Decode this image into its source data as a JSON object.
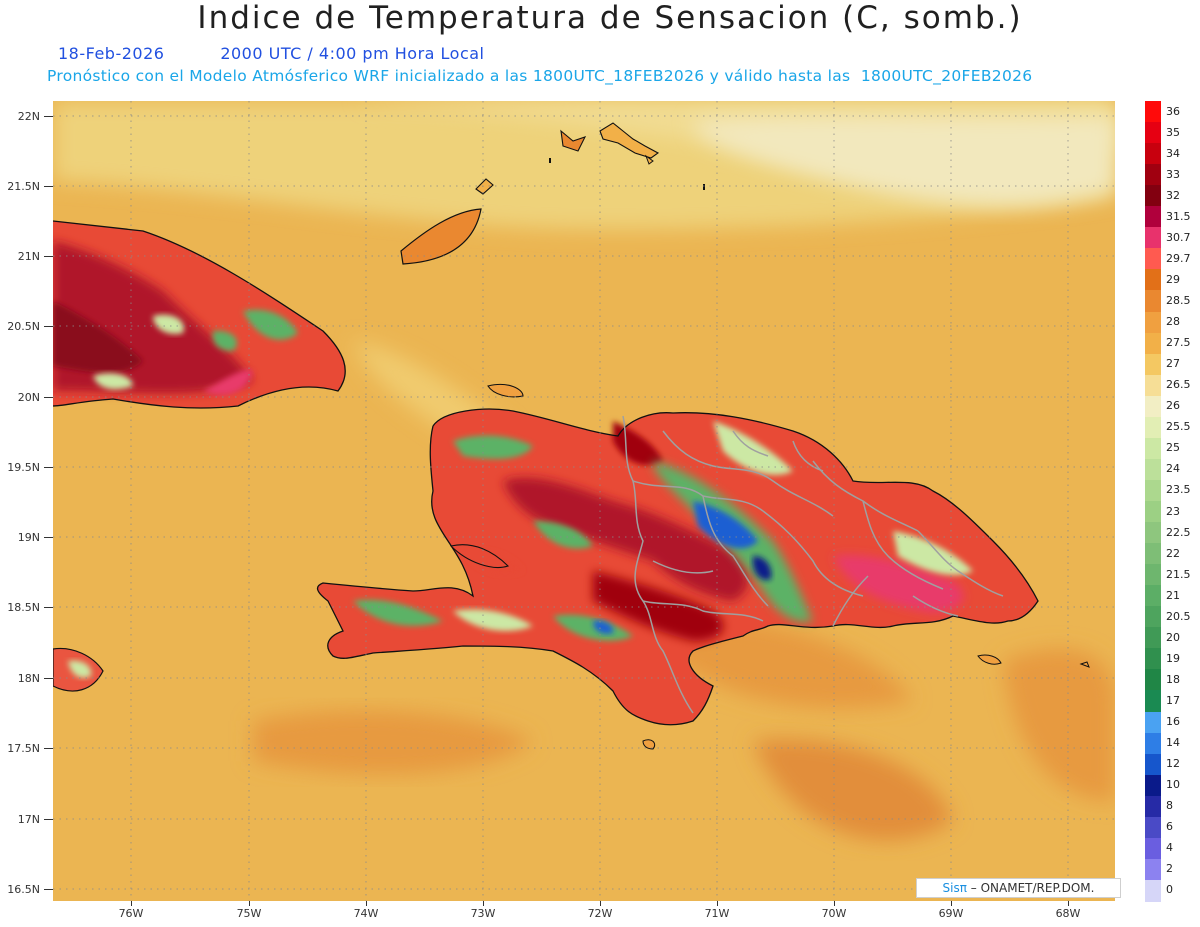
{
  "header": {
    "title": "Indice de Temperatura de Sensacion (C, somb.)",
    "date": "18-Feb-2026",
    "time": "2000 UTC / 4:00 pm Hora Local",
    "forecast_line": "Pronóstico con el Modelo Atmósferico WRF inicializado a las 1800UTC_18FEB2026 y válido hasta las  1800UTC_20FEB2026"
  },
  "map": {
    "lat_labels": [
      "22N",
      "21.5N",
      "21N",
      "20.5N",
      "20N",
      "19.5N",
      "19N",
      "18.5N",
      "18N",
      "17.5N",
      "17N",
      "16.5N"
    ],
    "lon_labels": [
      "76W",
      "75W",
      "74W",
      "73W",
      "72W",
      "71W",
      "70W",
      "69W",
      "68W"
    ],
    "colors": {
      "sea_base": "#ebb552",
      "land_hot": "#b0132b",
      "land_green": "#5cb266",
      "land_cold": "#1c5fd2",
      "coast": "#111111",
      "borders": "#a0a0a0"
    }
  },
  "colorbar": {
    "levels": [
      "36",
      "35",
      "34",
      "33",
      "32",
      "31.5",
      "30.7",
      "29.7",
      "29",
      "28.5",
      "28",
      "27.5",
      "27",
      "26.5",
      "26",
      "25.5",
      "25",
      "24",
      "23.5",
      "23",
      "22.5",
      "22",
      "21.5",
      "21",
      "20.5",
      "20",
      "19",
      "18",
      "17",
      "16",
      "14",
      "12",
      "10",
      "8",
      "6",
      "4",
      "2",
      "0"
    ],
    "colors": [
      "#ff0a0a",
      "#e60012",
      "#c8000e",
      "#a00010",
      "#820010",
      "#b0003c",
      "#e8326c",
      "#ff5a50",
      "#e27018",
      "#ea8830",
      "#f0a040",
      "#f2b048",
      "#f4c862",
      "#f6de96",
      "#f2eec4",
      "#e2eeb4",
      "#cce8a4",
      "#bce09a",
      "#acd88e",
      "#9cd084",
      "#8ec67e",
      "#7ebe76",
      "#6eb66e",
      "#5cae66",
      "#4ea45e",
      "#409a56",
      "#30904e",
      "#208646",
      "#1a8a52",
      "#4aa2f2",
      "#2e7ee6",
      "#1656cc",
      "#0a1a8a",
      "#262aa6",
      "#4a4ac6",
      "#6a5ee0",
      "#8c82f0",
      "#d6d6f8"
    ]
  },
  "credit": {
    "pi": "Sisπ",
    "text": "– ONAMET/REP.DOM."
  }
}
